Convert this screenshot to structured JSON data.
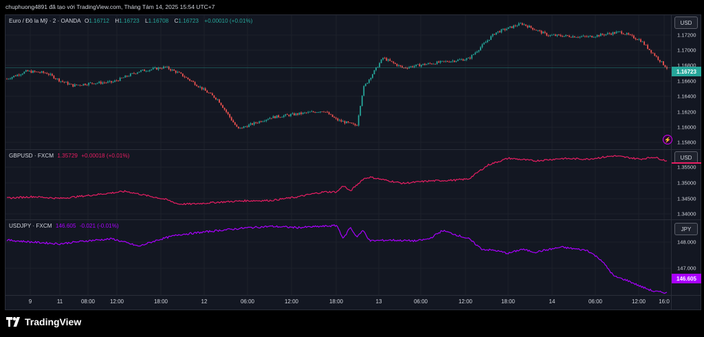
{
  "attribution": "chuphuong4891 đã tạo với TradingView.com, Tháng Tám 14, 2025 15:54 UTC+7",
  "brand": {
    "name": "TradingView"
  },
  "colors": {
    "background": "#131722",
    "grid": "#2a2e39",
    "candle_up": "#26a69a",
    "candle_down": "#ef5350",
    "gbpusd_line": "#e91e63",
    "usdjpy_line": "#aa00ff",
    "eurusd_last": "#26a69a"
  },
  "panes": [
    {
      "id": "eurusd",
      "legend": {
        "symbol": "Euro / Đô la Mỹ · 2 · OANDA",
        "o_label": "O",
        "o": "1.16712",
        "h_label": "H",
        "h": "1.16723",
        "l_label": "L",
        "l": "1.16708",
        "c_label": "C",
        "c": "1.16723",
        "change": "+0.00010 (+0.01%)"
      },
      "currency": "USD",
      "ticks": [
        "1.17200",
        "1.17000",
        "1.16800",
        "1.16600",
        "1.16400",
        "1.16200",
        "1.16000",
        "1.15800"
      ],
      "last_price": "1.16723",
      "icon": "lightning-icon"
    },
    {
      "id": "gbpusd",
      "legend": {
        "symbol": "GBPUSD · FXCM",
        "value": "1.35729",
        "change": "+0.00018 (+0.01%)"
      },
      "currency": "USD",
      "ticks": [
        "1.35500",
        "1.35000",
        "1.34500",
        "1.34000"
      ],
      "last_price": "1.35729"
    },
    {
      "id": "usdjpy",
      "legend": {
        "symbol": "USDJPY · FXCM",
        "value": "146.605",
        "change": "-0.021 (-0.01%)"
      },
      "currency": "JPY",
      "ticks": [
        "148.000",
        "147.000"
      ],
      "last_price": "146.605"
    }
  ],
  "time_axis": [
    "9",
    "11",
    "08:00",
    "12:00",
    "18:00",
    "12",
    "06:00",
    "12:00",
    "18:00",
    "13",
    "06:00",
    "12:00",
    "18:00",
    "14",
    "06:00",
    "12:00",
    "16:0"
  ],
  "chart_data": [
    {
      "type": "line",
      "title": "Euro / Đô la Mỹ · 2 · OANDA",
      "note": "candlestick series, approximate path",
      "ylim": [
        1.1575,
        1.1735
      ],
      "x": [
        0,
        3,
        6,
        8,
        10,
        13,
        16,
        20,
        24,
        26,
        28,
        32,
        35,
        40,
        45,
        48,
        50,
        53,
        54,
        57,
        60,
        63,
        70,
        74,
        78,
        82,
        88,
        93,
        96,
        100
      ],
      "values": [
        1.1659,
        1.1668,
        1.1666,
        1.1657,
        1.1651,
        1.1654,
        1.1655,
        1.1668,
        1.1673,
        1.1666,
        1.1656,
        1.1634,
        1.1599,
        1.1613,
        1.1618,
        1.1621,
        1.161,
        1.1603,
        1.1648,
        1.1684,
        1.1672,
        1.1676,
        1.1683,
        1.1714,
        1.1725,
        1.1711,
        1.1709,
        1.1715,
        1.1705,
        1.1672
      ]
    },
    {
      "type": "line",
      "title": "GBPUSD · FXCM",
      "ylim": [
        1.3375,
        1.361
      ],
      "x": [
        0,
        4,
        8,
        12,
        16,
        18,
        20,
        24,
        26,
        28,
        32,
        36,
        40,
        44,
        46,
        48,
        50,
        51,
        52,
        54,
        55,
        58,
        60,
        64,
        68,
        70,
        72,
        73,
        76,
        80,
        84,
        88,
        92,
        96,
        98,
        100
      ],
      "values": [
        1.3447,
        1.3452,
        1.3446,
        1.3455,
        1.3465,
        1.347,
        1.3461,
        1.3443,
        1.3427,
        1.3427,
        1.3433,
        1.3438,
        1.3439,
        1.3451,
        1.346,
        1.3468,
        1.3468,
        1.349,
        1.347,
        1.3512,
        1.3518,
        1.3505,
        1.3497,
        1.3505,
        1.3508,
        1.3512,
        1.3545,
        1.356,
        1.3582,
        1.3573,
        1.3581,
        1.3579,
        1.359,
        1.3579,
        1.3586,
        1.35729
      ]
    },
    {
      "type": "line",
      "title": "USDJPY · FXCM",
      "ylim": [
        146.55,
        148.35
      ],
      "x": [
        0,
        4,
        8,
        12,
        16,
        20,
        23,
        26,
        28,
        32,
        36,
        40,
        44,
        48,
        50,
        51,
        52,
        53,
        54,
        55,
        58,
        62,
        64,
        66,
        68,
        70,
        72,
        74,
        76,
        78,
        80,
        84,
        88,
        90,
        92,
        94,
        96,
        98,
        100
      ],
      "values": [
        147.87,
        147.82,
        147.78,
        147.85,
        147.9,
        147.72,
        147.88,
        148.0,
        148.03,
        148.1,
        148.16,
        148.2,
        148.17,
        148.2,
        148.22,
        147.9,
        148.18,
        147.95,
        148.1,
        147.85,
        147.87,
        147.85,
        147.9,
        148.1,
        148.0,
        147.9,
        147.65,
        147.62,
        147.55,
        147.65,
        147.58,
        147.7,
        147.62,
        147.4,
        147.0,
        146.9,
        146.76,
        146.64,
        146.605
      ]
    }
  ]
}
